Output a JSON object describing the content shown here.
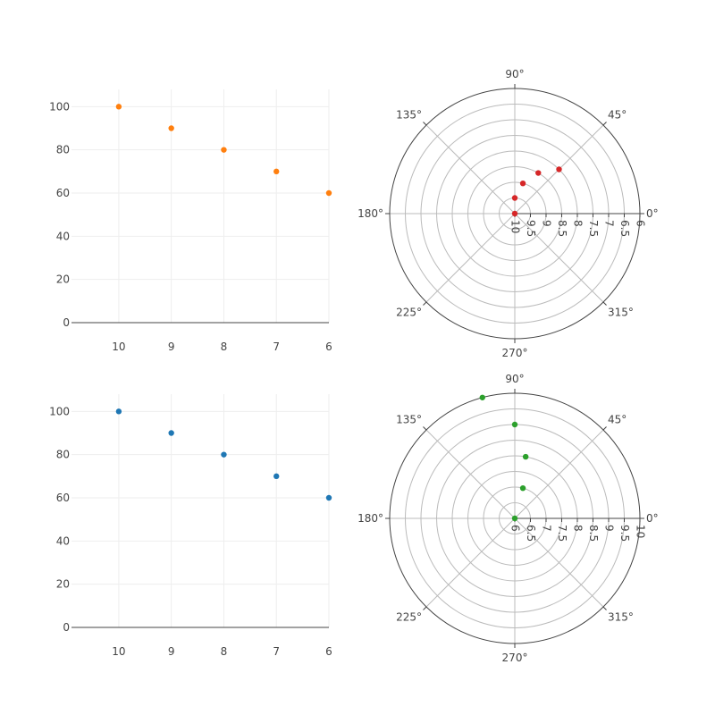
{
  "chart_data": [
    {
      "type": "scatter",
      "x": [
        10,
        9,
        8,
        7,
        6
      ],
      "y": [
        100,
        90,
        80,
        70,
        60
      ],
      "x_ticks": [
        "10",
        "9",
        "8",
        "7",
        "6"
      ],
      "y_ticks": [
        "0",
        "20",
        "40",
        "60",
        "80",
        "100"
      ],
      "xlim": [
        10.9,
        6
      ],
      "ylim": [
        0,
        108
      ],
      "color": "#ff7f0e",
      "xlabel": "",
      "ylabel": "",
      "title": ""
    },
    {
      "type": "polar",
      "r": [
        10,
        9.5,
        9,
        8.5,
        8
      ],
      "theta": [
        120,
        90,
        75,
        60,
        45
      ],
      "radial_range": [
        10,
        6
      ],
      "radial_ticks": [
        "10",
        "9.5",
        "9",
        "8.5",
        "8",
        "7.5",
        "7",
        "6.5",
        "6"
      ],
      "angular_ticks": [
        "0°",
        "45°",
        "90°",
        "135°",
        "180°",
        "225°",
        "270°",
        "315°"
      ],
      "color": "#d62728",
      "title": ""
    },
    {
      "type": "scatter",
      "x": [
        10,
        9,
        8,
        7,
        6
      ],
      "y": [
        100,
        90,
        80,
        70,
        60
      ],
      "x_ticks": [
        "10",
        "9",
        "8",
        "7",
        "6"
      ],
      "y_ticks": [
        "0",
        "20",
        "40",
        "60",
        "80",
        "100"
      ],
      "xlim": [
        10.9,
        6
      ],
      "ylim": [
        0,
        108
      ],
      "color": "#1f77b4",
      "xlabel": "",
      "ylabel": "",
      "title": ""
    },
    {
      "type": "polar",
      "r": [
        6,
        7,
        8,
        9,
        10
      ],
      "theta": [
        0,
        75,
        80,
        90,
        105
      ],
      "radial_range": [
        6,
        10
      ],
      "radial_ticks": [
        "6",
        "6.5",
        "7",
        "7.5",
        "8",
        "8.5",
        "9",
        "9.5",
        "10"
      ],
      "angular_ticks": [
        "0°",
        "45°",
        "90°",
        "135°",
        "180°",
        "225°",
        "270°",
        "315°"
      ],
      "color": "#2ca02c",
      "title": ""
    }
  ]
}
